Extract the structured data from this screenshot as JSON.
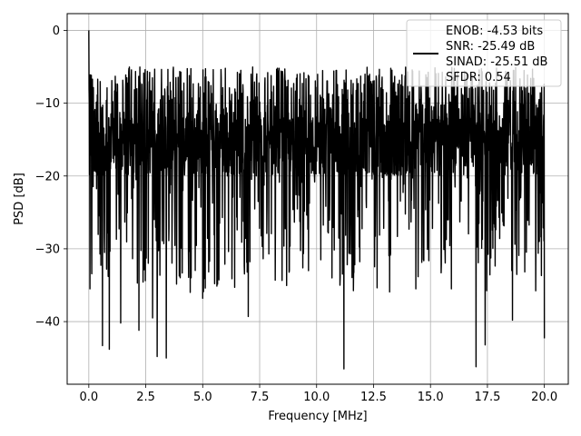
{
  "chart_data": {
    "type": "line",
    "title": "",
    "xlabel": "Frequency [MHz]",
    "ylabel": "PSD [dB]",
    "xlim": [
      -0.95,
      21.05
    ],
    "ylim": [
      -48.6,
      2.3
    ],
    "xticks": [
      0.0,
      2.5,
      5.0,
      7.5,
      10.0,
      12.5,
      15.0,
      17.5,
      20.0
    ],
    "xtick_labels": [
      "0.0",
      "2.5",
      "5.0",
      "7.5",
      "10.0",
      "12.5",
      "15.0",
      "17.5",
      "20.0"
    ],
    "yticks": [
      0,
      -10,
      -20,
      -30,
      -40
    ],
    "ytick_labels": [
      "0",
      "−10",
      "−20",
      "−30",
      "−40"
    ],
    "grid": true,
    "legend": {
      "placement": "top-right",
      "lines": [
        "ENOB: -4.53 bits",
        "SNR: -25.49 dB",
        "SINAD: -25.51 dB",
        "SFDR: 0.54"
      ]
    },
    "series": [
      {
        "color": "#000000",
        "x_range_mhz": [
          0,
          20
        ],
        "points": 2000,
        "description_values": {
          "upper_envelope_db": -5,
          "lower_envelope_db": -30
        },
        "notable_points": [
          {
            "x": 0.0,
            "y": 0
          },
          {
            "x": 0.05,
            "y": -35.5
          },
          {
            "x": 0.6,
            "y": -43.3
          },
          {
            "x": 0.9,
            "y": -43.8
          },
          {
            "x": 1.4,
            "y": -40.2
          },
          {
            "x": 2.2,
            "y": -41.2
          },
          {
            "x": 2.8,
            "y": -39.5
          },
          {
            "x": 3.0,
            "y": -44.8
          },
          {
            "x": 3.4,
            "y": -45.0
          },
          {
            "x": 5.0,
            "y": -36.8
          },
          {
            "x": 7.0,
            "y": -39.3
          },
          {
            "x": 11.2,
            "y": -46.5
          },
          {
            "x": 17.0,
            "y": -46.2
          },
          {
            "x": 17.4,
            "y": -43.2
          },
          {
            "x": 18.6,
            "y": -39.8
          },
          {
            "x": 20.0,
            "y": -42.3
          }
        ]
      }
    ]
  }
}
